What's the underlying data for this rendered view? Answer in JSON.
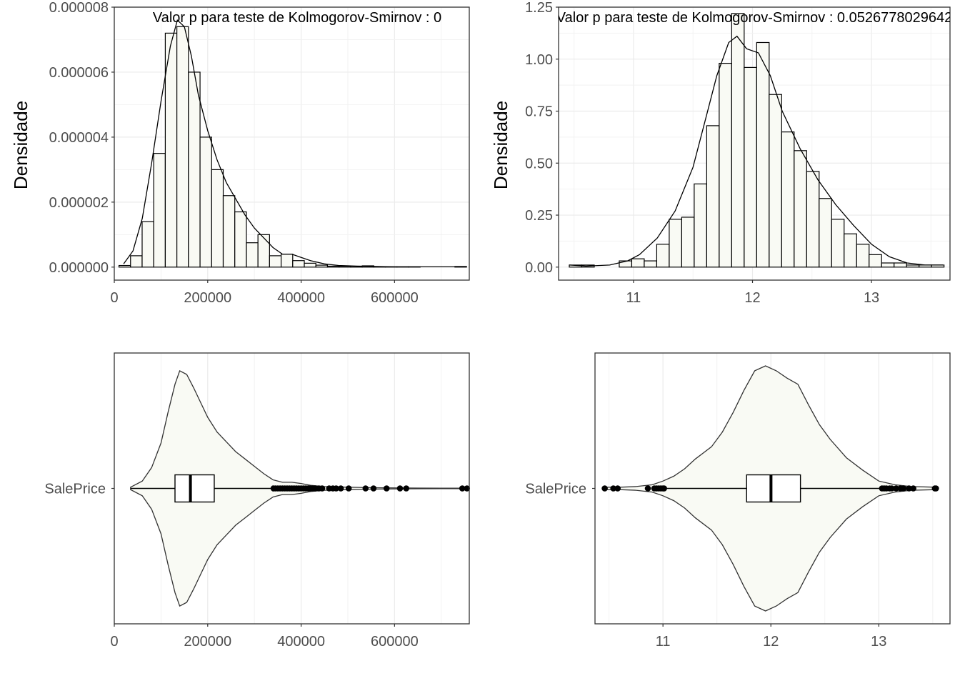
{
  "chart_data": [
    {
      "type": "histogram",
      "panel": "top-left",
      "ylabel": "Densidade",
      "annotation": "Valor p para teste de Kolmogorov-Smirnov : 0",
      "xlim": [
        0,
        760000
      ],
      "ylim": [
        -4e-07,
        8e-06
      ],
      "x_ticks": [
        0,
        200000,
        400000,
        600000
      ],
      "x_tick_labels": [
        "0",
        "200000",
        "400000",
        "600000"
      ],
      "y_ticks": [
        0,
        2e-06,
        4e-06,
        6e-06,
        8e-06
      ],
      "y_tick_labels": [
        "0.000000",
        "0.000002",
        "0.000004",
        "0.000006",
        "0.000008"
      ],
      "bin_start": 10000,
      "bin_width": 24800,
      "bin_density": [
        5e-08,
        3.5e-07,
        1.4e-06,
        3.5e-06,
        7.2e-06,
        7.4e-06,
        6e-06,
        4e-06,
        3e-06,
        2.2e-06,
        1.7e-06,
        7.5e-07,
        1e-06,
        3.5e-07,
        4e-07,
        2e-07,
        1.2e-07,
        6e-08,
        3e-08,
        3e-08,
        1e-08,
        4e-08,
        1e-08,
        1e-08,
        1e-08,
        1e-08,
        0.0,
        0.0,
        0.0,
        2e-08
      ],
      "density_x": [
        20000,
        40000,
        60000,
        80000,
        100000,
        120000,
        135000,
        150000,
        165000,
        180000,
        200000,
        220000,
        240000,
        260000,
        280000,
        300000,
        320000,
        340000,
        360000,
        380000,
        400000,
        420000,
        450000,
        480000,
        520000,
        560000,
        600000,
        650000,
        700000,
        755000
      ],
      "density_y": [
        1e-07,
        5e-07,
        1.5e-06,
        3.2e-06,
        5.1e-06,
        6.8e-06,
        7.6e-06,
        7.4e-06,
        6.5e-06,
        5.3e-06,
        4.2e-06,
        3.3e-06,
        2.6e-06,
        2.1e-06,
        1.6e-06,
        1.2e-06,
        9e-07,
        6e-07,
        4e-07,
        4e-07,
        3e-07,
        2e-07,
        1e-07,
        5e-08,
        3e-08,
        2e-08,
        1e-08,
        1e-08,
        1e-08,
        1e-08
      ]
    },
    {
      "type": "histogram",
      "panel": "top-right",
      "ylabel": "Densidade",
      "annotation": "Valor p para teste de Kolmogorov-Smirnov : 0.0526778029642",
      "xlim": [
        10.37,
        13.66
      ],
      "ylim": [
        -0.0625,
        1.25
      ],
      "x_ticks": [
        11,
        12,
        13
      ],
      "x_tick_labels": [
        "11",
        "12",
        "13"
      ],
      "y_ticks": [
        0,
        0.25,
        0.5,
        0.75,
        1.0,
        1.25
      ],
      "y_tick_labels": [
        "0.00",
        "0.25",
        "0.50",
        "0.75",
        "1.00",
        "1.25"
      ],
      "bin_start": 10.46,
      "bin_width": 0.105,
      "bin_density": [
        0.01,
        0.01,
        0.0,
        0.0,
        0.03,
        0.04,
        0.03,
        0.11,
        0.23,
        0.24,
        0.4,
        0.68,
        0.98,
        1.22,
        0.96,
        1.08,
        0.83,
        0.65,
        0.56,
        0.46,
        0.33,
        0.23,
        0.16,
        0.11,
        0.06,
        0.02,
        0.02,
        0.01,
        0.01,
        0.01
      ],
      "density_x": [
        10.46,
        10.6,
        10.8,
        10.95,
        11.05,
        11.2,
        11.35,
        11.5,
        11.6,
        11.7,
        11.8,
        11.87,
        11.95,
        12.05,
        12.15,
        12.25,
        12.4,
        12.55,
        12.7,
        12.85,
        13.0,
        13.15,
        13.3,
        13.45,
        13.6
      ],
      "density_y": [
        0.01,
        0.005,
        0.01,
        0.03,
        0.06,
        0.14,
        0.27,
        0.48,
        0.7,
        0.92,
        1.08,
        1.11,
        1.05,
        1.03,
        0.92,
        0.75,
        0.57,
        0.42,
        0.3,
        0.2,
        0.11,
        0.05,
        0.02,
        0.01,
        0.01
      ]
    },
    {
      "type": "violin_boxplot",
      "panel": "bottom-left",
      "category": "SalePrice",
      "xlim": [
        0,
        760000
      ],
      "x_ticks": [
        0,
        200000,
        400000,
        600000
      ],
      "x_tick_labels": [
        "0",
        "200000",
        "400000",
        "600000"
      ],
      "box": {
        "q1": 129975,
        "median": 163000,
        "q3": 214000,
        "whisker_low": 34900,
        "whisker_high": 340000
      },
      "outliers": [
        341000,
        345000,
        350000,
        355000,
        360000,
        365000,
        370000,
        375000,
        380000,
        385000,
        390000,
        395000,
        400000,
        405000,
        410000,
        415000,
        420000,
        425000,
        430000,
        438000,
        445000,
        460000,
        468000,
        475000,
        485000,
        501837,
        538000,
        555000,
        582933,
        611657,
        625000,
        745000,
        755000
      ],
      "violin_x": [
        34900,
        60000,
        80000,
        100000,
        115000,
        130000,
        140000,
        155000,
        170000,
        185000,
        200000,
        220000,
        240000,
        260000,
        280000,
        300000,
        320000,
        340000,
        360000,
        380000,
        400000,
        420000,
        450000,
        500000,
        550000,
        600000,
        650000,
        700000,
        755000
      ],
      "violin_y": [
        0.01,
        0.06,
        0.17,
        0.37,
        0.62,
        0.85,
        0.96,
        0.93,
        0.82,
        0.7,
        0.58,
        0.46,
        0.38,
        0.3,
        0.24,
        0.18,
        0.12,
        0.07,
        0.05,
        0.05,
        0.04,
        0.025,
        0.015,
        0.01,
        0.006,
        0.004,
        0.003,
        0.002,
        0.002
      ]
    },
    {
      "type": "violin_boxplot",
      "panel": "bottom-right",
      "category": "SalePrice",
      "xlim": [
        10.37,
        13.66
      ],
      "x_ticks": [
        11,
        12,
        13
      ],
      "x_tick_labels": [
        "11",
        "12",
        "13"
      ],
      "box": {
        "q1": 11.775,
        "median": 12.001,
        "q3": 12.274,
        "whisker_low": 11.03,
        "whisker_high": 13.02
      },
      "outliers": [
        10.46,
        10.54,
        10.58,
        10.86,
        10.92,
        10.94,
        10.96,
        10.98,
        11.0,
        11.01,
        13.03,
        13.05,
        13.07,
        13.1,
        13.12,
        13.16,
        13.2,
        13.23,
        13.28,
        13.32,
        13.52,
        13.53
      ],
      "violin_x": [
        10.46,
        10.6,
        10.75,
        10.9,
        11.0,
        11.1,
        11.2,
        11.3,
        11.45,
        11.55,
        11.65,
        11.75,
        11.85,
        11.95,
        12.05,
        12.15,
        12.25,
        12.35,
        12.45,
        12.55,
        12.7,
        12.85,
        13.0,
        13.15,
        13.3,
        13.53
      ],
      "violin_y": [
        0.01,
        0.01,
        0.015,
        0.03,
        0.06,
        0.1,
        0.16,
        0.24,
        0.34,
        0.46,
        0.62,
        0.8,
        0.96,
        1.0,
        0.96,
        0.9,
        0.85,
        0.68,
        0.52,
        0.4,
        0.25,
        0.15,
        0.06,
        0.03,
        0.015,
        0.01
      ]
    }
  ]
}
